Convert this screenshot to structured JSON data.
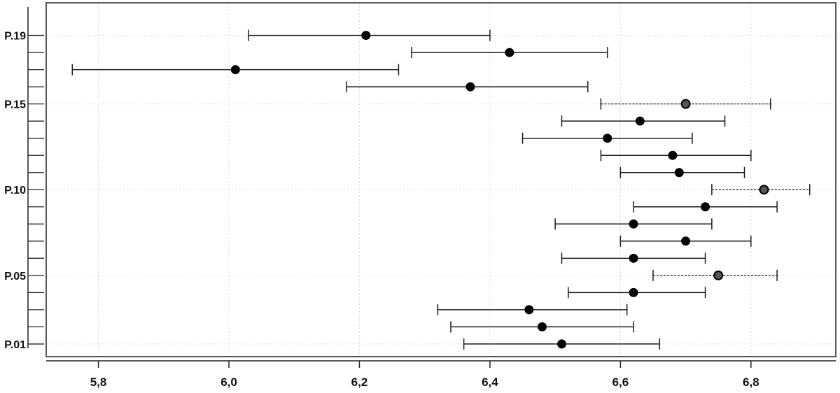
{
  "chart_data": {
    "type": "scatter",
    "title": "",
    "xlabel": "",
    "ylabel": "",
    "xlim": [
      5.72,
      6.93
    ],
    "x_ticks": [
      {
        "value": 5.8,
        "label": "5,8"
      },
      {
        "value": 6.0,
        "label": "6,0"
      },
      {
        "value": 6.2,
        "label": "6,2"
      },
      {
        "value": 6.4,
        "label": "6,4"
      },
      {
        "value": 6.6,
        "label": "6,6"
      },
      {
        "value": 6.8,
        "label": "6,8"
      }
    ],
    "y_labels": [
      {
        "index": 1,
        "label": "P.01"
      },
      {
        "index": 5,
        "label": "P.05"
      },
      {
        "index": 10,
        "label": "P.10"
      },
      {
        "index": 15,
        "label": "P.15"
      },
      {
        "index": 19,
        "label": "P.19"
      }
    ],
    "grid": true,
    "points": [
      {
        "index": 1,
        "mean": 6.51,
        "lower": 6.36,
        "upper": 6.66,
        "dashed": false
      },
      {
        "index": 2,
        "mean": 6.48,
        "lower": 6.34,
        "upper": 6.62,
        "dashed": false
      },
      {
        "index": 3,
        "mean": 6.46,
        "lower": 6.32,
        "upper": 6.61,
        "dashed": false
      },
      {
        "index": 4,
        "mean": 6.62,
        "lower": 6.52,
        "upper": 6.73,
        "dashed": false
      },
      {
        "index": 5,
        "mean": 6.75,
        "lower": 6.65,
        "upper": 6.84,
        "dashed": true
      },
      {
        "index": 6,
        "mean": 6.62,
        "lower": 6.51,
        "upper": 6.73,
        "dashed": false
      },
      {
        "index": 7,
        "mean": 6.7,
        "lower": 6.6,
        "upper": 6.8,
        "dashed": false
      },
      {
        "index": 8,
        "mean": 6.62,
        "lower": 6.5,
        "upper": 6.74,
        "dashed": false
      },
      {
        "index": 9,
        "mean": 6.73,
        "lower": 6.62,
        "upper": 6.84,
        "dashed": false
      },
      {
        "index": 10,
        "mean": 6.82,
        "lower": 6.74,
        "upper": 6.89,
        "dashed": true
      },
      {
        "index": 11,
        "mean": 6.69,
        "lower": 6.6,
        "upper": 6.79,
        "dashed": false
      },
      {
        "index": 12,
        "mean": 6.68,
        "lower": 6.57,
        "upper": 6.8,
        "dashed": false
      },
      {
        "index": 13,
        "mean": 6.58,
        "lower": 6.45,
        "upper": 6.71,
        "dashed": false
      },
      {
        "index": 14,
        "mean": 6.63,
        "lower": 6.51,
        "upper": 6.76,
        "dashed": false
      },
      {
        "index": 15,
        "mean": 6.7,
        "lower": 6.57,
        "upper": 6.83,
        "dashed": true
      },
      {
        "index": 16,
        "mean": 6.37,
        "lower": 6.18,
        "upper": 6.55,
        "dashed": false
      },
      {
        "index": 17,
        "mean": 6.01,
        "lower": 5.76,
        "upper": 6.26,
        "dashed": false
      },
      {
        "index": 18,
        "mean": 6.43,
        "lower": 6.28,
        "upper": 6.58,
        "dashed": false
      },
      {
        "index": 19,
        "mean": 6.21,
        "lower": 6.03,
        "upper": 6.4,
        "dashed": false
      }
    ]
  }
}
